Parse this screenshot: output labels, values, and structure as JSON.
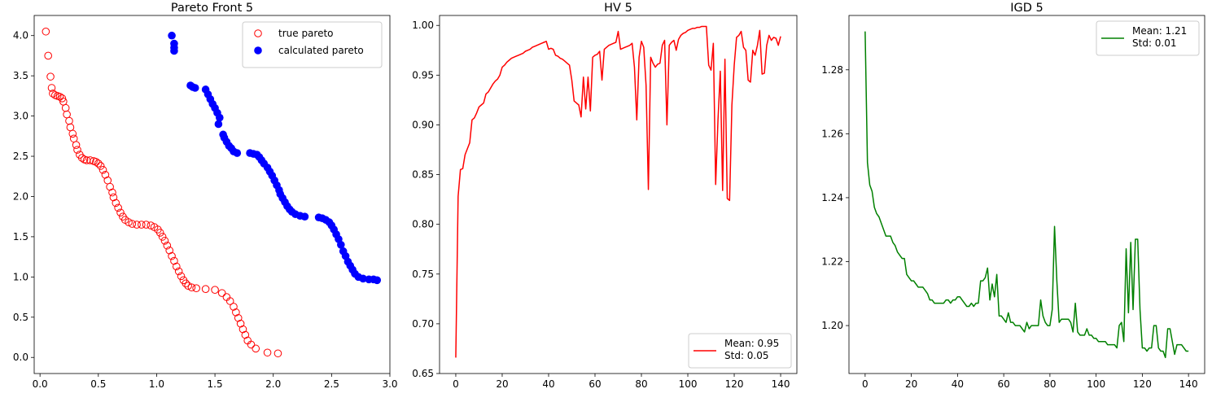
{
  "chart_data": [
    {
      "type": "scatter",
      "title": "Pareto Front 5",
      "xlim": [
        -0.05,
        3.0
      ],
      "ylim": [
        -0.2,
        4.25
      ],
      "xticks": [
        "0.0",
        "0.5",
        "1.0",
        "1.5",
        "2.0",
        "2.5",
        "3.0"
      ],
      "yticks": [
        "0.0",
        "0.5",
        "1.0",
        "1.5",
        "2.0",
        "2.5",
        "3.0",
        "3.5",
        "4.0"
      ],
      "legend_position": "top-right",
      "series": [
        {
          "name": "true pareto",
          "color": "#ff0000",
          "marker": "hollow-circle",
          "points": [
            [
              0.05,
              4.05
            ],
            [
              0.07,
              3.75
            ],
            [
              0.09,
              3.49
            ],
            [
              0.1,
              3.35
            ],
            [
              0.11,
              3.28
            ],
            [
              0.13,
              3.26
            ],
            [
              0.15,
              3.25
            ],
            [
              0.17,
              3.24
            ],
            [
              0.19,
              3.22
            ],
            [
              0.2,
              3.18
            ],
            [
              0.22,
              3.1
            ],
            [
              0.23,
              3.02
            ],
            [
              0.25,
              2.94
            ],
            [
              0.26,
              2.86
            ],
            [
              0.28,
              2.78
            ],
            [
              0.29,
              2.72
            ],
            [
              0.31,
              2.64
            ],
            [
              0.32,
              2.58
            ],
            [
              0.34,
              2.52
            ],
            [
              0.36,
              2.48
            ],
            [
              0.38,
              2.46
            ],
            [
              0.4,
              2.45
            ],
            [
              0.43,
              2.45
            ],
            [
              0.46,
              2.44
            ],
            [
              0.48,
              2.43
            ],
            [
              0.5,
              2.41
            ],
            [
              0.52,
              2.38
            ],
            [
              0.54,
              2.33
            ],
            [
              0.56,
              2.27
            ],
            [
              0.58,
              2.2
            ],
            [
              0.6,
              2.12
            ],
            [
              0.62,
              2.05
            ],
            [
              0.63,
              1.99
            ],
            [
              0.65,
              1.92
            ],
            [
              0.67,
              1.86
            ],
            [
              0.69,
              1.8
            ],
            [
              0.71,
              1.75
            ],
            [
              0.73,
              1.71
            ],
            [
              0.76,
              1.68
            ],
            [
              0.79,
              1.66
            ],
            [
              0.83,
              1.65
            ],
            [
              0.87,
              1.65
            ],
            [
              0.91,
              1.65
            ],
            [
              0.95,
              1.64
            ],
            [
              0.98,
              1.62
            ],
            [
              1.01,
              1.59
            ],
            [
              1.03,
              1.55
            ],
            [
              1.05,
              1.5
            ],
            [
              1.07,
              1.45
            ],
            [
              1.09,
              1.39
            ],
            [
              1.11,
              1.33
            ],
            [
              1.13,
              1.26
            ],
            [
              1.15,
              1.2
            ],
            [
              1.17,
              1.13
            ],
            [
              1.19,
              1.07
            ],
            [
              1.21,
              1.01
            ],
            [
              1.23,
              0.96
            ],
            [
              1.25,
              0.92
            ],
            [
              1.27,
              0.89
            ],
            [
              1.3,
              0.87
            ],
            [
              1.34,
              0.86
            ],
            [
              1.42,
              0.85
            ],
            [
              1.5,
              0.84
            ],
            [
              1.56,
              0.8
            ],
            [
              1.6,
              0.75
            ],
            [
              1.63,
              0.7
            ],
            [
              1.66,
              0.63
            ],
            [
              1.68,
              0.56
            ],
            [
              1.7,
              0.49
            ],
            [
              1.72,
              0.42
            ],
            [
              1.74,
              0.35
            ],
            [
              1.76,
              0.28
            ],
            [
              1.78,
              0.21
            ],
            [
              1.81,
              0.16
            ],
            [
              1.85,
              0.11
            ],
            [
              1.95,
              0.06
            ],
            [
              2.04,
              0.05
            ]
          ]
        },
        {
          "name": "calculated pareto",
          "color": "#0000ff",
          "marker": "filled-circle",
          "points": [
            [
              1.13,
              4.0
            ],
            [
              1.15,
              3.9
            ],
            [
              1.15,
              3.85
            ],
            [
              1.15,
              3.81
            ],
            [
              1.29,
              3.38
            ],
            [
              1.31,
              3.36
            ],
            [
              1.33,
              3.35
            ],
            [
              1.42,
              3.33
            ],
            [
              1.44,
              3.27
            ],
            [
              1.46,
              3.21
            ],
            [
              1.48,
              3.15
            ],
            [
              1.5,
              3.1
            ],
            [
              1.52,
              3.04
            ],
            [
              1.54,
              2.98
            ],
            [
              1.53,
              2.9
            ],
            [
              1.57,
              2.77
            ],
            [
              1.58,
              2.73
            ],
            [
              1.6,
              2.68
            ],
            [
              1.62,
              2.63
            ],
            [
              1.64,
              2.6
            ],
            [
              1.66,
              2.56
            ],
            [
              1.69,
              2.54
            ],
            [
              1.8,
              2.54
            ],
            [
              1.83,
              2.53
            ],
            [
              1.86,
              2.52
            ],
            [
              1.88,
              2.49
            ],
            [
              1.9,
              2.45
            ],
            [
              1.92,
              2.41
            ],
            [
              1.95,
              2.36
            ],
            [
              1.97,
              2.31
            ],
            [
              1.99,
              2.26
            ],
            [
              2.01,
              2.2
            ],
            [
              2.03,
              2.14
            ],
            [
              2.05,
              2.08
            ],
            [
              2.06,
              2.03
            ],
            [
              2.08,
              1.98
            ],
            [
              2.1,
              1.93
            ],
            [
              2.12,
              1.88
            ],
            [
              2.14,
              1.84
            ],
            [
              2.16,
              1.81
            ],
            [
              2.19,
              1.78
            ],
            [
              2.23,
              1.76
            ],
            [
              2.27,
              1.75
            ],
            [
              2.39,
              1.74
            ],
            [
              2.42,
              1.73
            ],
            [
              2.45,
              1.71
            ],
            [
              2.48,
              1.68
            ],
            [
              2.5,
              1.64
            ],
            [
              2.52,
              1.59
            ],
            [
              2.54,
              1.53
            ],
            [
              2.56,
              1.47
            ],
            [
              2.58,
              1.4
            ],
            [
              2.6,
              1.32
            ],
            [
              2.62,
              1.26
            ],
            [
              2.64,
              1.19
            ],
            [
              2.66,
              1.14
            ],
            [
              2.68,
              1.09
            ],
            [
              2.7,
              1.04
            ],
            [
              2.73,
              1.0
            ],
            [
              2.77,
              0.98
            ],
            [
              2.82,
              0.97
            ],
            [
              2.86,
              0.97
            ],
            [
              2.89,
              0.96
            ]
          ]
        }
      ]
    },
    {
      "type": "line",
      "title": "HV 5",
      "xlim": [
        -7,
        147
      ],
      "ylim": [
        0.65,
        1.01
      ],
      "xticks": [
        "0",
        "20",
        "40",
        "60",
        "80",
        "100",
        "120",
        "140"
      ],
      "yticks": [
        "0.65",
        "0.70",
        "0.75",
        "0.80",
        "0.85",
        "0.90",
        "0.95",
        "1.00"
      ],
      "legend_position": "bottom-right",
      "legend_lines": [
        "Mean: 0.95",
        "Std: 0.05"
      ],
      "color": "#ff0000",
      "x": [
        0,
        1,
        2,
        3,
        4,
        5,
        6,
        7,
        8,
        9,
        10,
        11,
        12,
        13,
        14,
        15,
        16,
        17,
        18,
        19,
        20,
        21,
        22,
        23,
        24,
        25,
        26,
        27,
        28,
        29,
        30,
        31,
        32,
        33,
        34,
        35,
        36,
        37,
        38,
        39,
        40,
        41,
        42,
        43,
        44,
        45,
        46,
        47,
        48,
        49,
        50,
        51,
        52,
        53,
        54,
        55,
        56,
        57,
        58,
        59,
        60,
        61,
        62,
        63,
        64,
        65,
        66,
        67,
        68,
        69,
        70,
        71,
        72,
        73,
        74,
        75,
        76,
        77,
        78,
        79,
        80,
        81,
        82,
        83,
        84,
        85,
        86,
        87,
        88,
        89,
        90,
        91,
        92,
        93,
        94,
        95,
        96,
        97,
        98,
        99,
        100,
        101,
        102,
        103,
        104,
        105,
        106,
        107,
        108,
        109,
        110,
        111,
        112,
        113,
        114,
        115,
        116,
        117,
        118,
        119,
        120,
        121,
        122,
        123,
        124,
        125,
        126,
        127,
        128,
        129,
        130,
        131,
        132,
        133,
        134,
        135,
        136,
        137,
        138,
        139,
        140
      ],
      "values": [
        0.666,
        0.828,
        0.855,
        0.856,
        0.87,
        0.876,
        0.882,
        0.905,
        0.907,
        0.912,
        0.918,
        0.92,
        0.922,
        0.931,
        0.933,
        0.937,
        0.941,
        0.944,
        0.946,
        0.95,
        0.958,
        0.96,
        0.963,
        0.965,
        0.967,
        0.968,
        0.969,
        0.97,
        0.971,
        0.972,
        0.974,
        0.975,
        0.976,
        0.978,
        0.979,
        0.98,
        0.981,
        0.982,
        0.983,
        0.984,
        0.976,
        0.977,
        0.976,
        0.97,
        0.969,
        0.967,
        0.966,
        0.964,
        0.962,
        0.96,
        0.945,
        0.924,
        0.922,
        0.92,
        0.908,
        0.948,
        0.916,
        0.948,
        0.914,
        0.968,
        0.97,
        0.971,
        0.974,
        0.945,
        0.976,
        0.978,
        0.98,
        0.981,
        0.982,
        0.983,
        0.994,
        0.976,
        0.977,
        0.978,
        0.979,
        0.98,
        0.982,
        0.958,
        0.905,
        0.968,
        0.984,
        0.978,
        0.94,
        0.835,
        0.968,
        0.962,
        0.958,
        0.961,
        0.962,
        0.98,
        0.985,
        0.9,
        0.98,
        0.983,
        0.985,
        0.975,
        0.986,
        0.99,
        0.992,
        0.993,
        0.995,
        0.996,
        0.997,
        0.997,
        0.998,
        0.998,
        0.999,
        0.999,
        0.999,
        0.96,
        0.955,
        0.982,
        0.84,
        0.905,
        0.954,
        0.834,
        0.966,
        0.826,
        0.824,
        0.92,
        0.96,
        0.988,
        0.99,
        0.994,
        0.978,
        0.975,
        0.945,
        0.943,
        0.975,
        0.97,
        0.98,
        0.995,
        0.951,
        0.952,
        0.98,
        0.99,
        0.985,
        0.988,
        0.987,
        0.98,
        0.989
      ]
    },
    {
      "type": "line",
      "title": "IGD 5",
      "xlim": [
        -7,
        147
      ],
      "ylim": [
        1.185,
        1.297
      ],
      "xticks": [
        "0",
        "20",
        "40",
        "60",
        "80",
        "100",
        "120",
        "140"
      ],
      "yticks": [
        "1.20",
        "1.22",
        "1.24",
        "1.26",
        "1.28"
      ],
      "legend_position": "top-right",
      "legend_lines": [
        "Mean: 1.21",
        "Std: 0.01"
      ],
      "color": "#008000",
      "x": [
        0,
        1,
        2,
        3,
        4,
        5,
        6,
        7,
        8,
        9,
        10,
        11,
        12,
        13,
        14,
        15,
        16,
        17,
        18,
        19,
        20,
        21,
        22,
        23,
        24,
        25,
        26,
        27,
        28,
        29,
        30,
        31,
        32,
        33,
        34,
        35,
        36,
        37,
        38,
        39,
        40,
        41,
        42,
        43,
        44,
        45,
        46,
        47,
        48,
        49,
        50,
        51,
        52,
        53,
        54,
        55,
        56,
        57,
        58,
        59,
        60,
        61,
        62,
        63,
        64,
        65,
        66,
        67,
        68,
        69,
        70,
        71,
        72,
        73,
        74,
        75,
        76,
        77,
        78,
        79,
        80,
        81,
        82,
        83,
        84,
        85,
        86,
        87,
        88,
        89,
        90,
        91,
        92,
        93,
        94,
        95,
        96,
        97,
        98,
        99,
        100,
        101,
        102,
        103,
        104,
        105,
        106,
        107,
        108,
        109,
        110,
        111,
        112,
        113,
        114,
        115,
        116,
        117,
        118,
        119,
        120,
        121,
        122,
        123,
        124,
        125,
        126,
        127,
        128,
        129,
        130,
        131,
        132,
        133,
        134,
        135,
        136,
        137,
        138,
        139,
        140
      ],
      "values": [
        1.292,
        1.251,
        1.244,
        1.242,
        1.237,
        1.235,
        1.234,
        1.232,
        1.23,
        1.228,
        1.228,
        1.228,
        1.226,
        1.225,
        1.223,
        1.222,
        1.221,
        1.221,
        1.216,
        1.215,
        1.214,
        1.214,
        1.213,
        1.212,
        1.212,
        1.212,
        1.211,
        1.21,
        1.208,
        1.208,
        1.207,
        1.207,
        1.207,
        1.207,
        1.207,
        1.208,
        1.208,
        1.207,
        1.208,
        1.208,
        1.209,
        1.209,
        1.208,
        1.207,
        1.206,
        1.206,
        1.207,
        1.206,
        1.207,
        1.207,
        1.214,
        1.214,
        1.215,
        1.218,
        1.208,
        1.213,
        1.209,
        1.216,
        1.203,
        1.203,
        1.202,
        1.201,
        1.204,
        1.201,
        1.201,
        1.2,
        1.2,
        1.2,
        1.199,
        1.198,
        1.201,
        1.199,
        1.2,
        1.2,
        1.2,
        1.2,
        1.208,
        1.203,
        1.201,
        1.2,
        1.2,
        1.205,
        1.231,
        1.214,
        1.201,
        1.202,
        1.202,
        1.202,
        1.202,
        1.201,
        1.198,
        1.207,
        1.198,
        1.197,
        1.197,
        1.197,
        1.199,
        1.197,
        1.197,
        1.196,
        1.196,
        1.195,
        1.195,
        1.195,
        1.195,
        1.194,
        1.194,
        1.194,
        1.194,
        1.193,
        1.2,
        1.201,
        1.195,
        1.224,
        1.204,
        1.226,
        1.205,
        1.227,
        1.227,
        1.205,
        1.193,
        1.193,
        1.192,
        1.193,
        1.193,
        1.2,
        1.2,
        1.193,
        1.192,
        1.192,
        1.19,
        1.199,
        1.199,
        1.195,
        1.191,
        1.194,
        1.194,
        1.194,
        1.193,
        1.192,
        1.192
      ]
    }
  ]
}
